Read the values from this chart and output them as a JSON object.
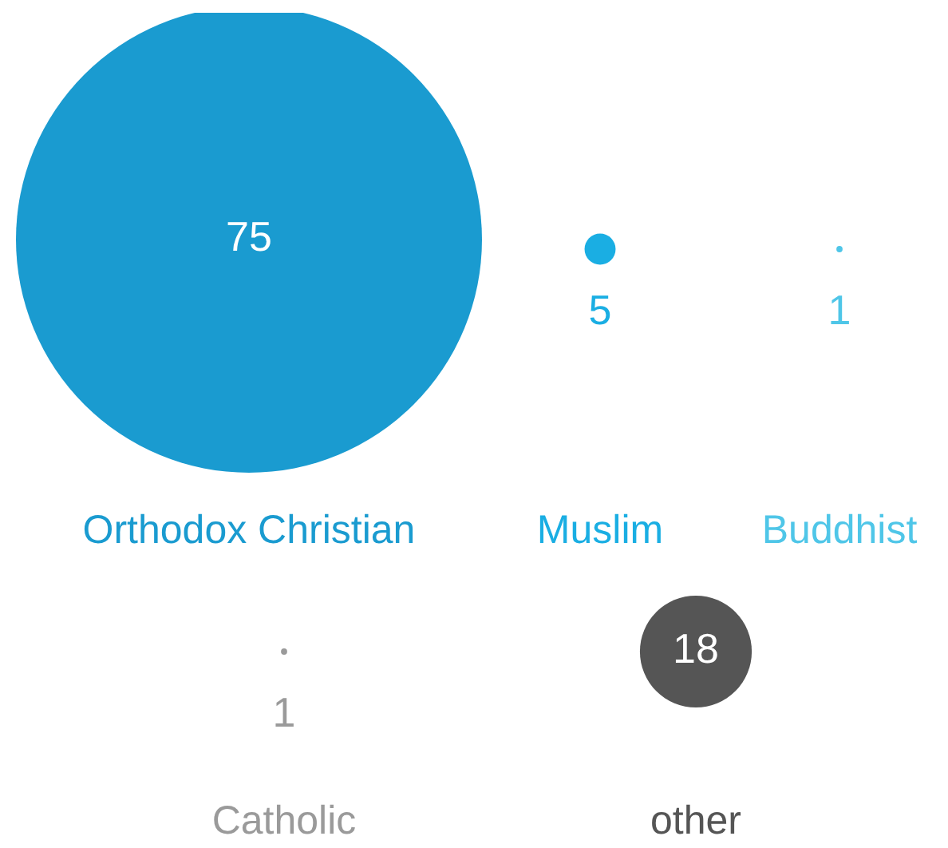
{
  "chart_data": {
    "type": "other",
    "categories": [
      "Orthodox Christian",
      "Muslim",
      "Buddhist",
      "Catholic",
      "other"
    ],
    "values": [
      75,
      5,
      1,
      1,
      18
    ],
    "colors": [
      "#1a9bd0",
      "#1aaee3",
      "#4fc6e8",
      "#9a9a9a",
      "#555555"
    ],
    "data_labels": true
  }
}
